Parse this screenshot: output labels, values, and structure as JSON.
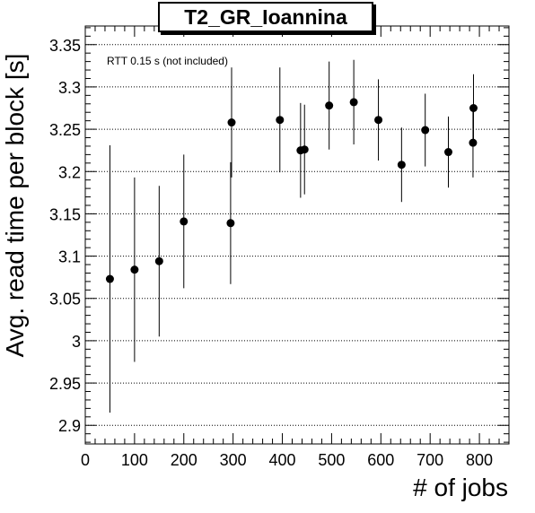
{
  "chart_data": {
    "type": "scatter",
    "title": "T2_GR_Ioannina",
    "annotation": "RTT 0.15 s (not included)",
    "xlabel": "# of jobs",
    "ylabel": "Avg. read time per block [s]",
    "xlim": [
      0,
      860
    ],
    "ylim": [
      2.878,
      3.372
    ],
    "xticks": [
      0,
      100,
      200,
      300,
      400,
      500,
      600,
      700,
      800
    ],
    "yticks": [
      2.9,
      2.95,
      3,
      3.05,
      3.1,
      3.15,
      3.2,
      3.25,
      3.3,
      3.35
    ],
    "ytick_labels": [
      "2.9",
      "2.95",
      "3",
      "3.05",
      "3.1",
      "3.15",
      "3.2",
      "3.25",
      "3.3",
      "3.35"
    ],
    "grid": "horizontal dotted",
    "points": [
      {
        "x": 50,
        "y": 3.073,
        "err": 0.158
      },
      {
        "x": 100,
        "y": 3.084,
        "err": 0.109
      },
      {
        "x": 150,
        "y": 3.094,
        "err": 0.089
      },
      {
        "x": 200,
        "y": 3.141,
        "err": 0.079
      },
      {
        "x": 295,
        "y": 3.139,
        "err": 0.072
      },
      {
        "x": 297,
        "y": 3.258,
        "err": 0.065
      },
      {
        "x": 395,
        "y": 3.261,
        "err": 0.062
      },
      {
        "x": 437,
        "y": 3.225,
        "err": 0.056
      },
      {
        "x": 445,
        "y": 3.226,
        "err": 0.053
      },
      {
        "x": 495,
        "y": 3.278,
        "err": 0.052
      },
      {
        "x": 545,
        "y": 3.282,
        "err": 0.05
      },
      {
        "x": 595,
        "y": 3.261,
        "err": 0.048
      },
      {
        "x": 642,
        "y": 3.208,
        "err": 0.044
      },
      {
        "x": 690,
        "y": 3.249,
        "err": 0.043
      },
      {
        "x": 737,
        "y": 3.223,
        "err": 0.042
      },
      {
        "x": 787,
        "y": 3.234,
        "err": 0.041
      },
      {
        "x": 788,
        "y": 3.275,
        "err": 0.04
      }
    ]
  }
}
